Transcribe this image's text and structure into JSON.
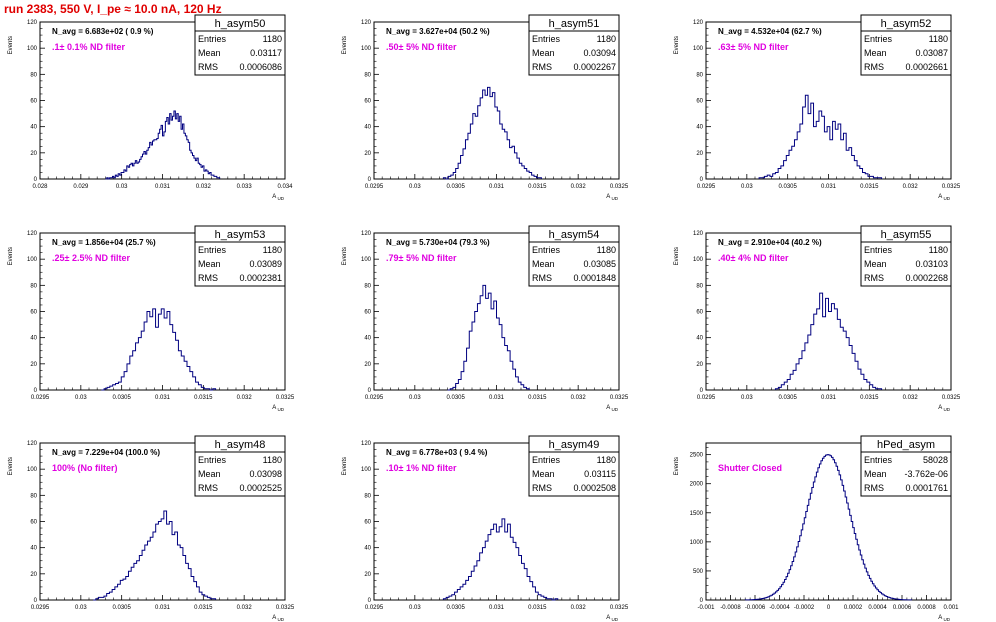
{
  "title": "run 2383,   550 V, I_pe ≈ 10.0 nA, 120 Hz",
  "colors": {
    "title": "#e00000",
    "hist": "#000080",
    "filter_label": "#e000e0"
  },
  "chart_data": [
    {
      "type": "bar",
      "name": "h_asym50",
      "navg": "N_avg = 6.683e+02 ( 0.9 %)",
      "filter": ".1± 0.1% ND filter",
      "stats": {
        "entries": "1180",
        "mean": "0.03117",
        "rms": "0.0006086"
      },
      "ylabel": "Events",
      "xlabel": "A_UD",
      "xlim": [
        0.028,
        0.034
      ],
      "ylim": [
        0,
        120
      ],
      "xticks": [
        "0.028",
        "0.029",
        "0.03",
        "0.031",
        "0.032",
        "0.033",
        "0.034"
      ],
      "yticks": [
        "0",
        "20",
        "40",
        "60",
        "80",
        "100",
        "120"
      ],
      "bins": {
        "x0": 0.0296,
        "x1": 0.0324,
        "values": [
          0,
          1,
          0,
          1,
          1,
          2,
          1,
          3,
          2,
          4,
          3,
          5,
          5,
          7,
          6,
          10,
          9,
          11,
          12,
          10,
          12,
          14,
          12,
          13,
          15,
          17,
          19,
          21,
          19,
          22,
          24,
          28,
          26,
          29,
          30,
          30,
          31,
          35,
          38,
          41,
          33,
          36,
          44,
          47,
          42,
          50,
          45,
          48,
          52,
          46,
          50,
          44,
          48,
          38,
          42,
          35,
          33,
          30,
          28,
          22,
          20,
          18,
          16,
          14,
          16,
          12,
          11,
          9,
          10,
          6,
          7,
          6,
          4,
          5,
          3,
          3,
          2,
          2,
          1,
          1
        ]
      }
    },
    {
      "type": "bar",
      "name": "h_asym51",
      "navg": "N_avg = 3.627e+04 (50.2 %)",
      "filter": ".50± 5% ND filter",
      "stats": {
        "entries": "1180",
        "mean": "0.03094",
        "rms": "0.0002267"
      },
      "ylabel": "Events",
      "xlabel": "A_UD",
      "xlim": [
        0.0295,
        0.0325
      ],
      "ylim": [
        0,
        120
      ],
      "xticks": [
        "0.0295",
        "0.03",
        "0.0305",
        "0.031",
        "0.0315",
        "0.032",
        "0.0325"
      ],
      "yticks": [
        "0",
        "20",
        "40",
        "60",
        "80",
        "100",
        "120"
      ],
      "bins": {
        "x0": 0.03035,
        "x1": 0.03155,
        "values": [
          1,
          0,
          2,
          3,
          5,
          8,
          12,
          18,
          23,
          30,
          35,
          42,
          50,
          48,
          56,
          62,
          68,
          64,
          70,
          63,
          66,
          55,
          52,
          42,
          38,
          36,
          30,
          24,
          25,
          20,
          16,
          12,
          10,
          8,
          6,
          5,
          3,
          2,
          1,
          1
        ]
      }
    },
    {
      "type": "bar",
      "name": "h_asym52",
      "navg": "N_avg = 4.532e+04 (62.7 %)",
      "filter": ".63± 5% ND filter",
      "stats": {
        "entries": "1180",
        "mean": "0.03087",
        "rms": "0.0002661"
      },
      "ylabel": "Events",
      "xlabel": "A_UD",
      "xlim": [
        0.0295,
        0.0325
      ],
      "ylim": [
        0,
        120
      ],
      "xticks": [
        "0.0295",
        "0.03",
        "0.0305",
        "0.031",
        "0.0315",
        "0.032",
        "0.0325"
      ],
      "yticks": [
        "0",
        "20",
        "40",
        "60",
        "80",
        "100",
        "120"
      ],
      "bins": {
        "x0": 0.03015,
        "x1": 0.03165,
        "values": [
          1,
          1,
          2,
          3,
          2,
          4,
          5,
          8,
          10,
          14,
          18,
          22,
          25,
          30,
          36,
          42,
          55,
          64,
          50,
          58,
          40,
          44,
          52,
          48,
          36,
          40,
          30,
          44,
          38,
          42,
          30,
          35,
          22,
          24,
          18,
          14,
          10,
          8,
          5,
          4,
          2,
          2,
          1,
          1,
          1
        ]
      }
    },
    {
      "type": "bar",
      "name": "h_asym53",
      "navg": "N_avg = 1.856e+04 (25.7 %)",
      "filter": ".25± 2.5% ND filter",
      "stats": {
        "entries": "1180",
        "mean": "0.03089",
        "rms": "0.0002381"
      },
      "ylabel": "Events",
      "xlabel": "A_UD",
      "xlim": [
        0.0295,
        0.0325
      ],
      "ylim": [
        0,
        120
      ],
      "xticks": [
        "0.0295",
        "0.03",
        "0.0305",
        "0.031",
        "0.0315",
        "0.032",
        "0.0325"
      ],
      "yticks": [
        "0",
        "20",
        "40",
        "60",
        "80",
        "100",
        "120"
      ],
      "bins": {
        "x0": 0.03025,
        "x1": 0.03165,
        "values": [
          0,
          1,
          2,
          3,
          4,
          5,
          6,
          10,
          14,
          20,
          26,
          30,
          36,
          40,
          45,
          52,
          60,
          56,
          62,
          48,
          58,
          62,
          55,
          60,
          50,
          44,
          38,
          30,
          26,
          22,
          18,
          14,
          10,
          6,
          4,
          2,
          1,
          1,
          0,
          1
        ]
      }
    },
    {
      "type": "bar",
      "name": "h_asym54",
      "navg": "N_avg = 5.730e+04 (79.3 %)",
      "filter": ".79± 5% ND filter",
      "stats": {
        "entries": "1180",
        "mean": "0.03085",
        "rms": "0.0001848"
      },
      "ylabel": "Events",
      "xlabel": "A_UD",
      "xlim": [
        0.0295,
        0.0325
      ],
      "ylim": [
        0,
        120
      ],
      "xticks": [
        "0.0295",
        "0.03",
        "0.0305",
        "0.031",
        "0.0315",
        "0.032",
        "0.0325"
      ],
      "yticks": [
        "0",
        "20",
        "40",
        "60",
        "80",
        "100",
        "120"
      ],
      "bins": {
        "x0": 0.0304,
        "x1": 0.0314,
        "values": [
          0,
          1,
          2,
          5,
          8,
          14,
          22,
          32,
          45,
          52,
          60,
          66,
          72,
          80,
          70,
          74,
          62,
          68,
          55,
          50,
          40,
          34,
          30,
          22,
          16,
          10,
          6,
          4,
          2,
          1
        ]
      }
    },
    {
      "type": "bar",
      "name": "h_asym55",
      "navg": "N_avg = 2.910e+04 (40.2 %)",
      "filter": ".40± 4% ND filter",
      "stats": {
        "entries": "1180",
        "mean": "0.03103",
        "rms": "0.0002268"
      },
      "ylabel": "Events",
      "xlabel": "A_UD",
      "xlim": [
        0.0295,
        0.0325
      ],
      "ylim": [
        0,
        120
      ],
      "xticks": [
        "0.0295",
        "0.03",
        "0.0305",
        "0.031",
        "0.0315",
        "0.032",
        "0.0325"
      ],
      "yticks": [
        "0",
        "20",
        "40",
        "60",
        "80",
        "100",
        "120"
      ],
      "bins": {
        "x0": 0.03035,
        "x1": 0.03165,
        "values": [
          1,
          2,
          4,
          6,
          8,
          12,
          15,
          20,
          24,
          30,
          36,
          42,
          50,
          58,
          62,
          74,
          56,
          70,
          60,
          66,
          62,
          54,
          48,
          45,
          40,
          34,
          28,
          22,
          16,
          12,
          8,
          6,
          4,
          2,
          1,
          1
        ]
      }
    },
    {
      "type": "bar",
      "name": "h_asym48",
      "navg": "N_avg = 7.229e+04 (100.0 %)",
      "filter": "100% (No filter)",
      "stats": {
        "entries": "1180",
        "mean": "0.03098",
        "rms": "0.0002525"
      },
      "ylabel": "Events",
      "xlabel": "A_UD",
      "xlim": [
        0.0295,
        0.0325
      ],
      "ylim": [
        0,
        120
      ],
      "xticks": [
        "0.0295",
        "0.03",
        "0.0305",
        "0.031",
        "0.0315",
        "0.032",
        "0.0325"
      ],
      "yticks": [
        "0",
        "20",
        "40",
        "60",
        "80",
        "100",
        "120"
      ],
      "bins": {
        "x0": 0.03015,
        "x1": 0.03165,
        "values": [
          0,
          1,
          2,
          2,
          3,
          5,
          6,
          8,
          10,
          12,
          15,
          16,
          18,
          22,
          25,
          28,
          30,
          34,
          38,
          42,
          45,
          48,
          52,
          58,
          60,
          62,
          68,
          58,
          60,
          50,
          52,
          42,
          40,
          34,
          28,
          24,
          18,
          14,
          10,
          6,
          4,
          3,
          2,
          1,
          1
        ]
      }
    },
    {
      "type": "bar",
      "name": "h_asym49",
      "navg": "N_avg = 6.778e+03 ( 9.4 %)",
      "filter": ".10± 1% ND filter",
      "stats": {
        "entries": "1180",
        "mean": "0.03115",
        "rms": "0.0002508"
      },
      "ylabel": "Events",
      "xlabel": "A_UD",
      "xlim": [
        0.0295,
        0.0325
      ],
      "ylim": [
        0,
        120
      ],
      "xticks": [
        "0.0295",
        "0.03",
        "0.0305",
        "0.031",
        "0.0315",
        "0.032",
        "0.0325"
      ],
      "yticks": [
        "0",
        "20",
        "40",
        "60",
        "80",
        "100",
        "120"
      ],
      "bins": {
        "x0": 0.03035,
        "x1": 0.03175,
        "values": [
          1,
          2,
          3,
          4,
          6,
          8,
          10,
          12,
          15,
          18,
          22,
          26,
          30,
          36,
          40,
          45,
          50,
          54,
          58,
          52,
          56,
          62,
          52,
          58,
          48,
          44,
          40,
          34,
          28,
          24,
          18,
          14,
          10,
          6,
          4,
          3,
          2,
          1,
          1,
          0,
          1
        ]
      }
    },
    {
      "type": "bar",
      "name": "hPed_asym",
      "navg": "",
      "filter": "Shutter Closed",
      "stats": {
        "entries": "58028",
        "mean": "-3.762e-06",
        "rms": "0.0001761"
      },
      "ylabel": "Events",
      "xlabel": "A_UD",
      "xlim": [
        -0.001,
        0.001
      ],
      "ylim": [
        0,
        2700
      ],
      "xticks": [
        "-0.001",
        "-0.0008",
        "-0.0006",
        "-0.0004",
        "-0.0002",
        "0",
        "0.0002",
        "0.0004",
        "0.0006",
        "0.0008",
        "0.001"
      ],
      "yticks": [
        "0",
        "500",
        "1000",
        "1500",
        "2000",
        "2500"
      ],
      "bins": {
        "gauss": {
          "mu": -3.8e-06,
          "sigma": 0.000176,
          "peak": 2500,
          "lo": -0.00068,
          "hi": 0.00068,
          "n": 110
        }
      }
    }
  ]
}
